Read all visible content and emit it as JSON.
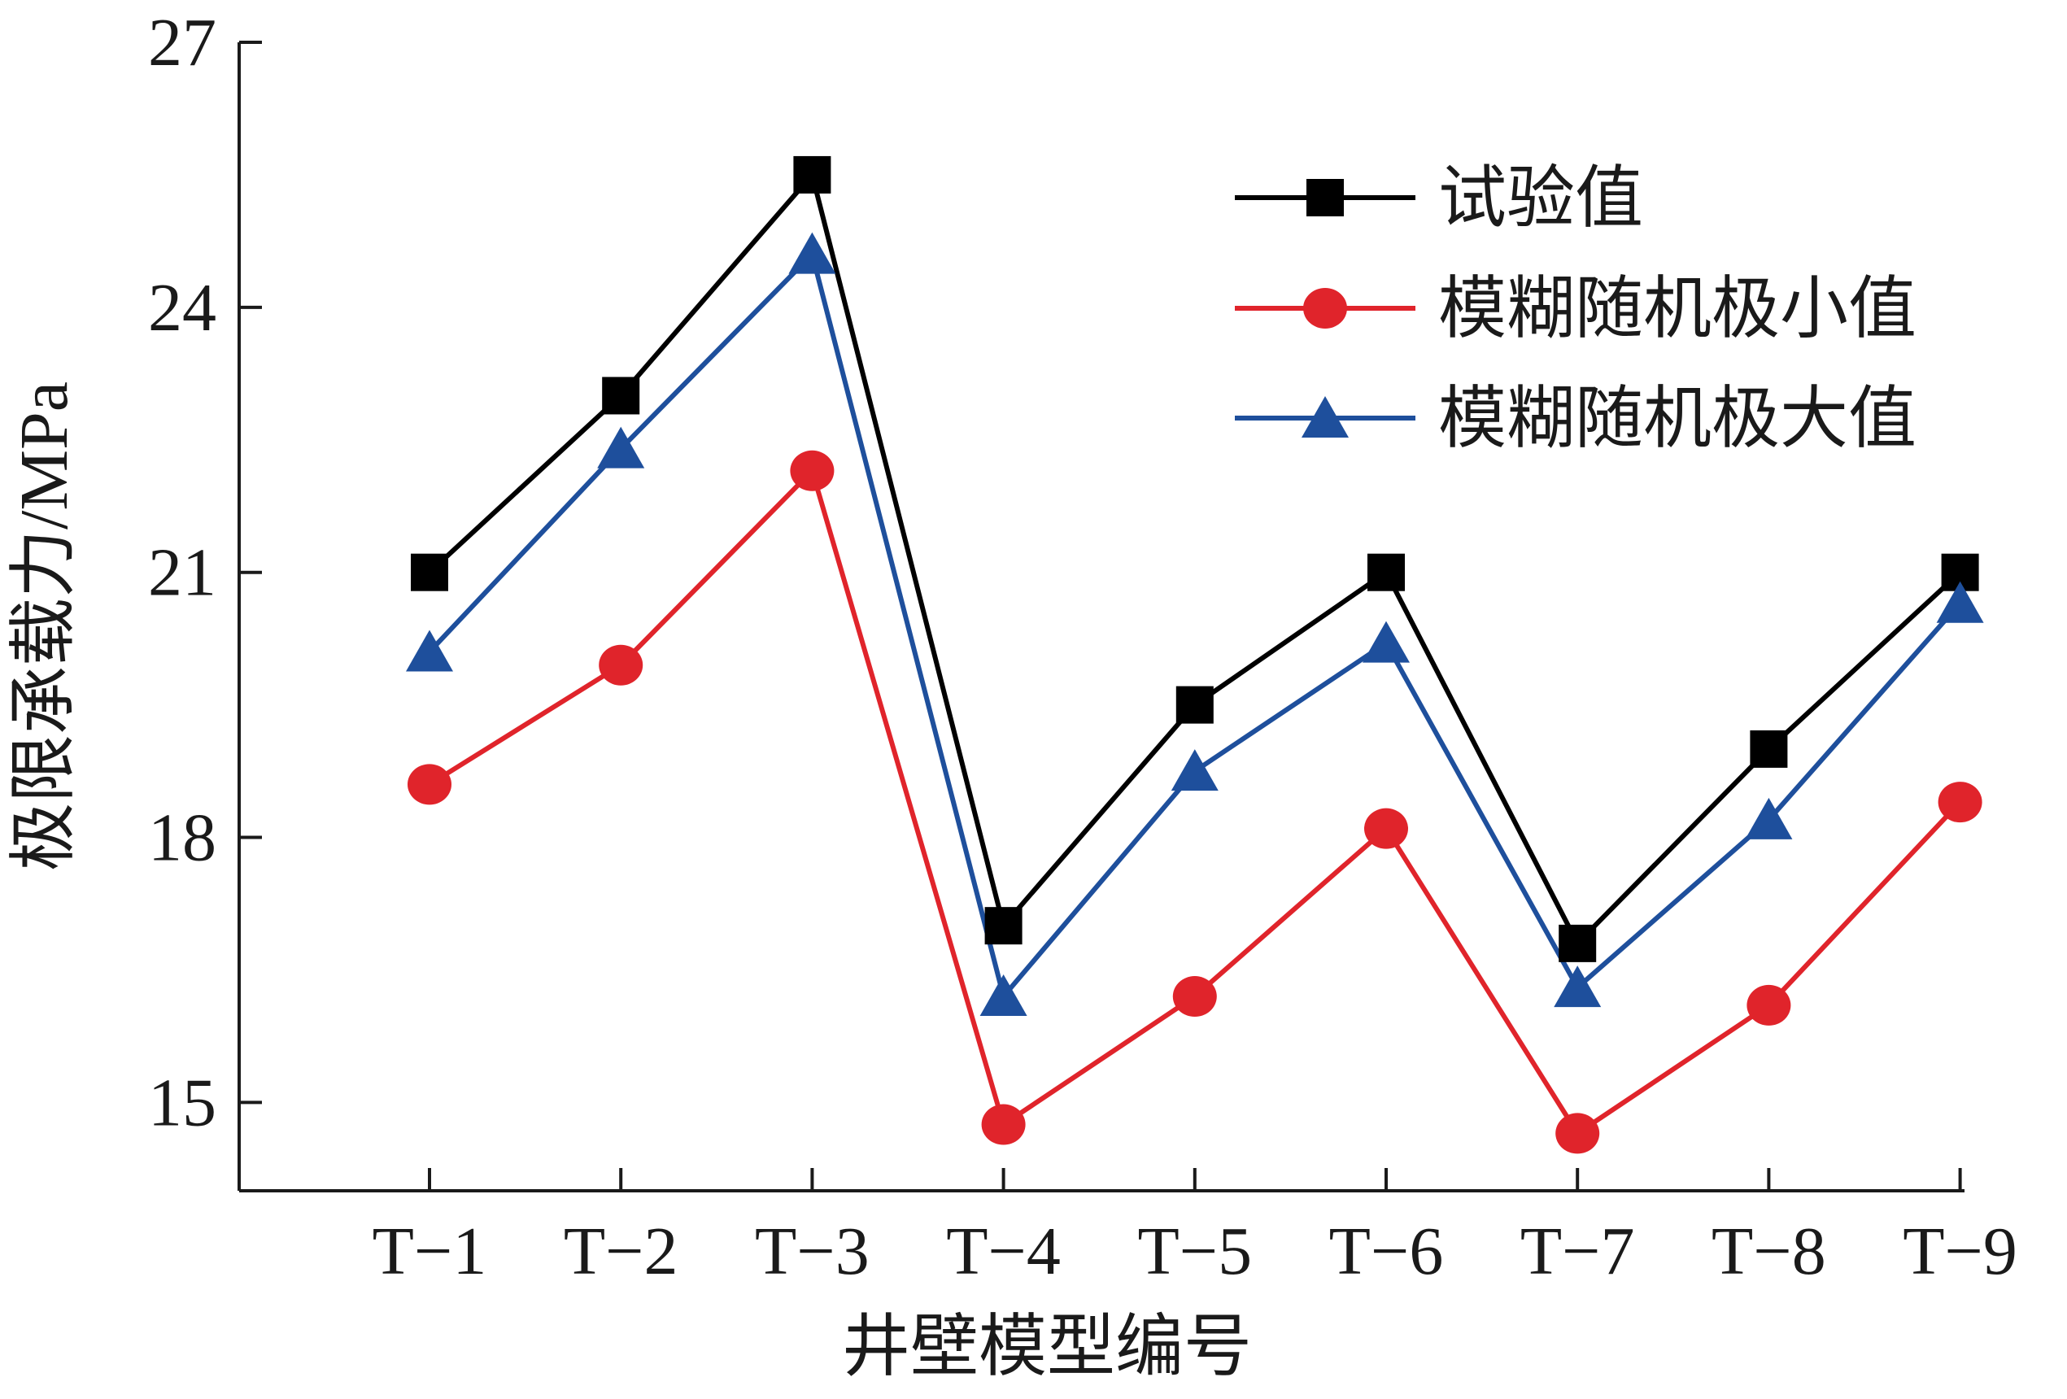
{
  "chart_data": {
    "type": "line",
    "title": "",
    "xlabel": "井壁模型编号",
    "ylabel": "极限承载力/MPa",
    "categories": [
      "T−1",
      "T−2",
      "T−3",
      "T−4",
      "T−5",
      "T−6",
      "T−7",
      "T−8",
      "T−9"
    ],
    "y_ticks": [
      "15",
      "18",
      "21",
      "24",
      "27"
    ],
    "ylim": [
      14,
      27
    ],
    "grid": false,
    "legend_position": "top-right",
    "series": [
      {
        "name": "试验值",
        "color": "#000000",
        "marker": "square",
        "values": [
          21.0,
          23.0,
          25.5,
          17.0,
          19.5,
          21.0,
          16.8,
          19.0,
          21.0
        ]
      },
      {
        "name": "模糊随机极小值",
        "color": "#e0242b",
        "marker": "circle",
        "values": [
          18.6,
          19.95,
          22.15,
          14.75,
          16.2,
          18.1,
          14.65,
          16.1,
          18.4
        ]
      },
      {
        "name": "模糊随机极大值",
        "color": "#1e4f9c",
        "marker": "triangle",
        "values": [
          20.1,
          22.4,
          24.6,
          16.2,
          18.75,
          20.2,
          16.3,
          18.2,
          20.65
        ]
      }
    ]
  }
}
